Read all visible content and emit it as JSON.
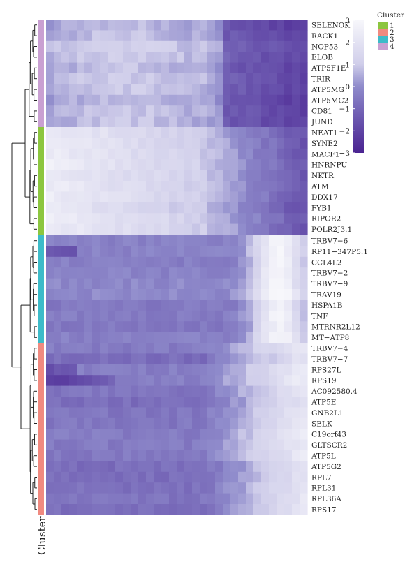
{
  "chart_data": {
    "type": "heatmap",
    "title": "",
    "axis_title": "Cluster",
    "legend": {
      "title": "Cluster",
      "placement": "top-right",
      "entries": [
        {
          "label": "1",
          "color": "#8CC63F"
        },
        {
          "label": "2",
          "color": "#F08A80"
        },
        {
          "label": "3",
          "color": "#3DBBC9"
        },
        {
          "label": "4",
          "color": "#C9A0D2"
        }
      ]
    },
    "colorbar": {
      "range": [
        -3,
        3
      ],
      "ticks": [
        "3",
        "2",
        "1",
        "0",
        "−1",
        "−2",
        "−3"
      ],
      "low_color": "#4A2391",
      "mid_color": "#8F8BCB",
      "high_color": "#F7F7FB"
    },
    "groups": [
      {
        "cluster": "4",
        "color": "#C9A0D2",
        "pattern": "light_to_dark",
        "genes": [
          "SELENOK",
          "RACK1",
          "NOP53",
          "ELOB",
          "ATP5F1E",
          "TRIR",
          "ATP5MG",
          "ATP5MC2",
          "CD81",
          "JUND"
        ]
      },
      {
        "cluster": "1",
        "color": "#8CC63F",
        "pattern": "white_to_dark",
        "genes": [
          "NEAT1",
          "SYNE2",
          "MACF1",
          "HNRNPU",
          "NKTR",
          "ATM",
          "DDX17",
          "FYB1",
          "RIPOR2",
          "POLR2J3.1"
        ]
      },
      {
        "cluster": "3",
        "color": "#3DBBC9",
        "pattern": "peak_late",
        "genes": [
          "TRBV7−6",
          "RP11−347P5.1",
          "CCL4L2",
          "TRBV7−2",
          "TRBV7−9",
          "TRAV19",
          "HSPA1B",
          "TNF",
          "MTRNR2L12",
          "MT−ATP8"
        ]
      },
      {
        "cluster": "2",
        "color": "#F08A80",
        "pattern": "rise_to_white",
        "genes": [
          "TRBV7−4",
          "TRBV7−7",
          "RPS27L",
          "RPS19",
          "AC092580.4",
          "ATP5E",
          "GNB2L1",
          "SELK",
          "C19orf43",
          "GLTSCR2",
          "ATP5L",
          "ATP5G2",
          "RPL7",
          "RPL31",
          "RPL36A",
          "RPS17"
        ]
      }
    ]
  }
}
